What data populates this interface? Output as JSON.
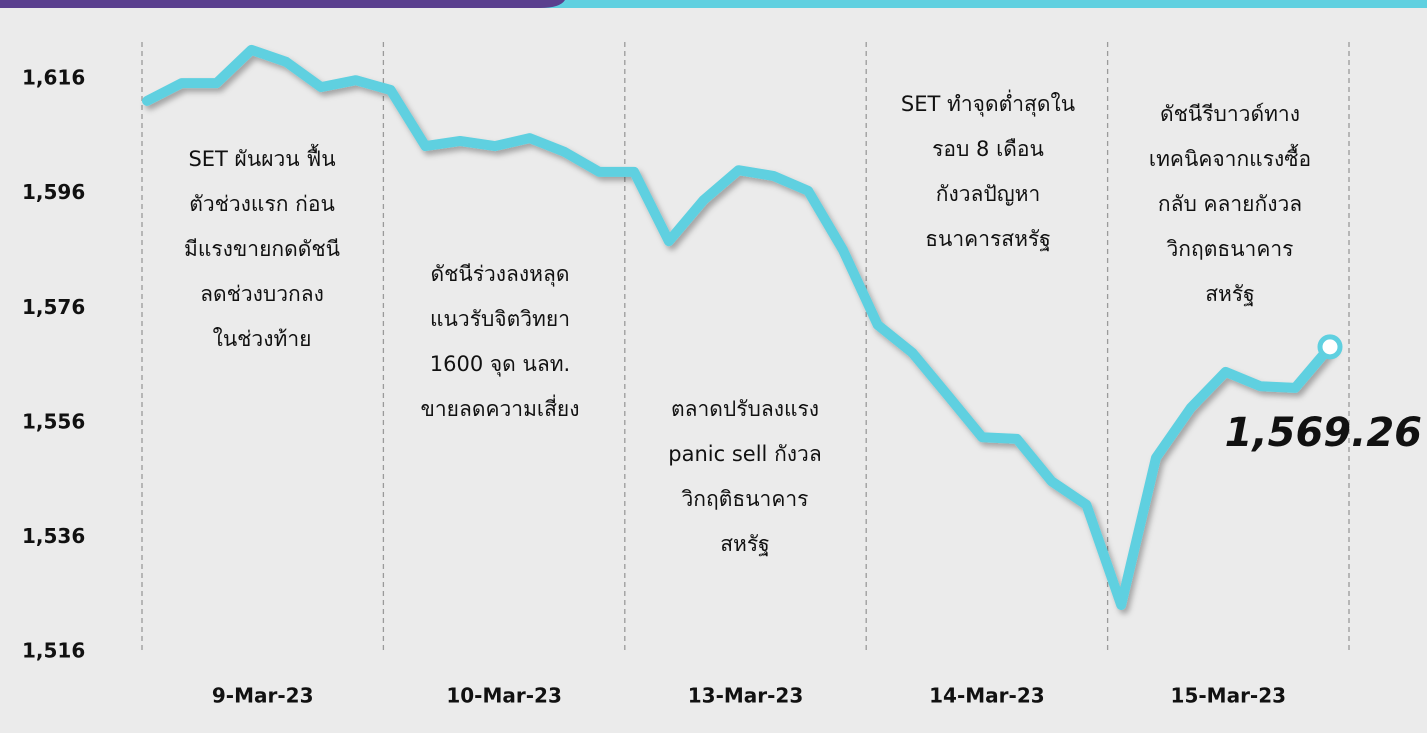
{
  "chart_data": {
    "type": "line",
    "x_axis_labels": [
      "9-Mar-23",
      "10-Mar-23",
      "13-Mar-23",
      "14-Mar-23",
      "15-Mar-23"
    ],
    "values": [
      1612.2,
      1615.3,
      1615.3,
      1621.1,
      1619.0,
      1614.6,
      1615.8,
      1614.1,
      1604.3,
      1605.2,
      1604.3,
      1605.7,
      1603.3,
      1599.8,
      1599.8,
      1587.7,
      1594.9,
      1600.1,
      1599.1,
      1596.5,
      1586.2,
      1573.1,
      1568.2,
      1560.9,
      1553.5,
      1553.2,
      1545.8,
      1541.7,
      1524.2,
      1549.9,
      1558.6,
      1564.9,
      1562.4,
      1562.1,
      1569.26
    ],
    "value_labels": [
      null,
      null,
      null,
      null,
      null,
      null,
      null,
      null,
      null,
      null,
      null,
      null,
      null,
      null,
      null,
      null,
      null,
      null,
      null,
      null,
      null,
      null,
      null,
      null,
      null,
      null,
      null,
      null,
      null,
      null,
      null,
      null,
      null,
      null,
      "1,569.26"
    ],
    "color": "#5fd0e0",
    "ylim": [
      1516,
      1623
    ],
    "yticks": [
      {
        "value": 1516,
        "label": "1,516"
      },
      {
        "value": 1536,
        "label": "1,536"
      },
      {
        "value": 1556,
        "label": "1,556"
      },
      {
        "value": 1576,
        "label": "1,576"
      },
      {
        "value": 1596,
        "label": "1,596"
      },
      {
        "value": 1616,
        "label": "1,616"
      }
    ],
    "annotations": [
      [
        "SET ผันผวน ฟื้น",
        "ตัวช่วงแรก ก่อน",
        "มีแรงขายกดดัชนี",
        "ลดช่วงบวกลง",
        "ในช่วงท้าย"
      ],
      [
        "ดัชนีร่วงลงหลุด",
        "แนวรับจิตวิทยา",
        "1600 จุด นลท.",
        "ขายลดความเสี่ยง"
      ],
      [
        "ตลาดปรับลงแรง",
        "panic sell กังวล",
        "วิกฤติธนาคาร",
        "สหรัฐ"
      ],
      [
        "SET ทำจุดต่ำสุดใน",
        "รอบ 8 เดือน",
        "กังวลปัญหา",
        "ธนาคารสหรัฐ"
      ],
      [
        "ดัชนีรีบาวด์ทาง",
        "เทคนิคจากแรงซื้อ",
        "กลับ คลายกังวล",
        "วิกฤตธนาคาร",
        "สหรัฐ"
      ]
    ]
  }
}
